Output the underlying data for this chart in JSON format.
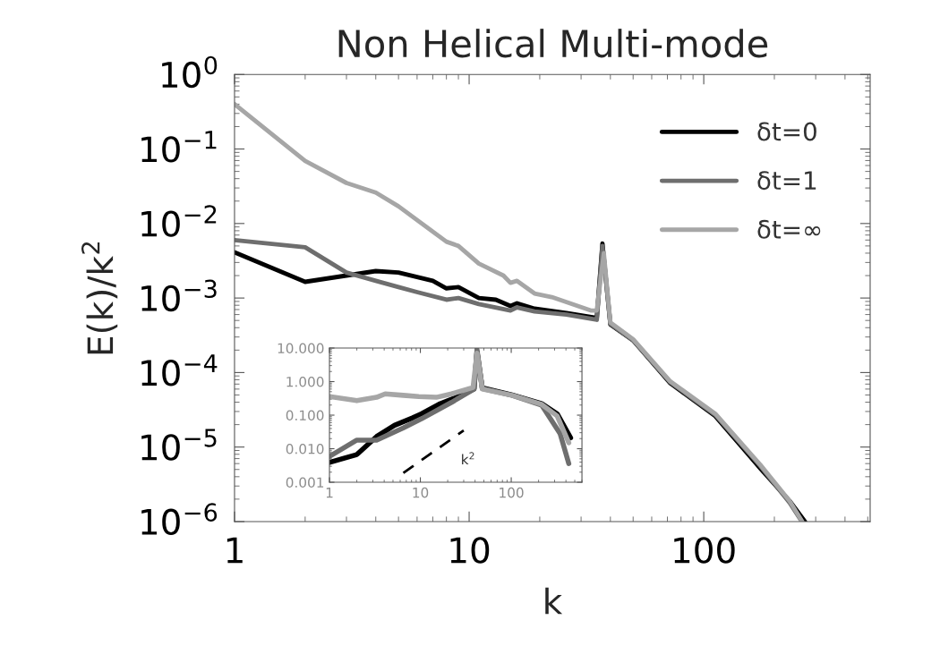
{
  "chart_data": [
    {
      "type": "line",
      "title": "Non Helical Multi-mode",
      "xlabel": "k",
      "ylabel": "E(k)/k$^{2}$",
      "log": "xy",
      "grid": false,
      "legend": "top right",
      "xlim": [
        1,
        512
      ],
      "xticks": [
        1,
        10,
        100
      ],
      "ylim": [
        1e-06,
        1
      ],
      "yticks": [
        {
          "value": 1e-06,
          "label": "10$^{−6}$"
        },
        {
          "value": 1e-05,
          "label": "10$^{−5}$"
        },
        {
          "value": 0.0001,
          "label": "10$^{−4}$"
        },
        {
          "value": 0.001,
          "label": "10$^{−3}$"
        },
        {
          "value": 0.01,
          "label": "10$^{−2}$"
        },
        {
          "value": 0.1,
          "label": "10$^{−1}$"
        },
        {
          "value": 1,
          "label": "10$^{0}$"
        }
      ],
      "series": [
        {
          "name": "δt=0",
          "color": "#000000",
          "x": [
            1,
            2,
            4,
            5,
            7,
            8,
            9,
            11,
            13,
            15,
            16,
            19,
            26,
            35,
            37,
            40,
            50,
            72,
            112,
            174,
            232,
            270
          ],
          "values": [
            0.0041,
            0.00165,
            0.0023,
            0.0022,
            0.0017,
            0.00135,
            0.0014,
            0.001,
            0.00095,
            0.00078,
            0.00085,
            0.00072,
            0.00063,
            0.00054,
            0.0054,
            0.00044,
            0.00027,
            7.2e-05,
            2.6e-05,
            5.2e-06,
            1.9e-06,
            1e-06
          ]
        },
        {
          "name": "δt=1",
          "color": "#6e6e6e",
          "x": [
            1,
            2,
            3,
            4,
            5,
            6,
            8,
            9,
            11,
            15,
            16,
            19,
            26,
            35,
            37,
            40,
            50,
            72,
            112,
            174,
            232,
            262
          ],
          "values": [
            0.006,
            0.0048,
            0.0022,
            0.0017,
            0.0014,
            0.0012,
            0.00095,
            0.001,
            0.00083,
            0.00068,
            0.00075,
            0.00066,
            0.0006,
            0.00051,
            0.005,
            0.00045,
            0.00027,
            7.4e-05,
            2.7e-05,
            5.6e-06,
            1.8e-06,
            1e-06
          ]
        },
        {
          "name": "δt=∞",
          "color": "#a6a6a6",
          "x": [
            1,
            2,
            3,
            4,
            5,
            8,
            9,
            11,
            14,
            15,
            16,
            19,
            22.5,
            33,
            35,
            37.5,
            40,
            50,
            72,
            112,
            174,
            232,
            263
          ],
          "values": [
            0.4,
            0.069,
            0.035,
            0.026,
            0.017,
            0.0057,
            0.005,
            0.0029,
            0.002,
            0.0016,
            0.0017,
            0.00115,
            0.00103,
            0.00068,
            0.00068,
            0.004,
            0.00047,
            0.00028,
            7.6e-05,
            2.8e-05,
            5.8e-06,
            1.9e-06,
            1e-06
          ]
        }
      ]
    },
    {
      "type": "line",
      "log": "xy",
      "grid": false,
      "xlim": [
        1,
        600
      ],
      "xticks": [
        1,
        10,
        100
      ],
      "ylim": [
        0.001,
        10
      ],
      "yticks": [
        {
          "value": 0.001,
          "label": "0.001"
        },
        {
          "value": 0.01,
          "label": "0.010"
        },
        {
          "value": 0.1,
          "label": "0.100"
        },
        {
          "value": 1,
          "label": "1.000"
        },
        {
          "value": 10,
          "label": "10.000"
        }
      ],
      "annotations": [
        "k$^{2}$"
      ],
      "series": [
        {
          "color": "#000000",
          "x": [
            1,
            2,
            3.3,
            5.2,
            8.2,
            10.3,
            16,
            28,
            39,
            42,
            48,
            102,
            216,
            320,
            450
          ],
          "values": [
            0.0039,
            0.0067,
            0.023,
            0.05,
            0.083,
            0.11,
            0.21,
            0.39,
            0.6,
            8,
            0.65,
            0.4,
            0.22,
            0.11,
            0.021
          ]
        },
        {
          "color": "#6e6e6e",
          "x": [
            1,
            2,
            3.3,
            6.5,
            10.3,
            22,
            39,
            42,
            48,
            102,
            216,
            345,
            430
          ],
          "values": [
            0.0059,
            0.018,
            0.018,
            0.042,
            0.078,
            0.24,
            0.6,
            9,
            0.62,
            0.39,
            0.2,
            0.028,
            0.0036
          ]
        },
        {
          "color": "#a6a6a6",
          "x": [
            1,
            2,
            3.3,
            4.1,
            6.5,
            9.6,
            15,
            22,
            38,
            42,
            48,
            102,
            216,
            320,
            430
          ],
          "values": [
            0.36,
            0.27,
            0.34,
            0.43,
            0.39,
            0.36,
            0.34,
            0.43,
            0.67,
            7,
            0.6,
            0.39,
            0.21,
            0.095,
            0.015
          ]
        },
        {
          "color": "#000000",
          "line_style": "dashed",
          "x": [
            6.5,
            30
          ],
          "values": [
            0.0019,
            0.035
          ]
        }
      ]
    }
  ]
}
